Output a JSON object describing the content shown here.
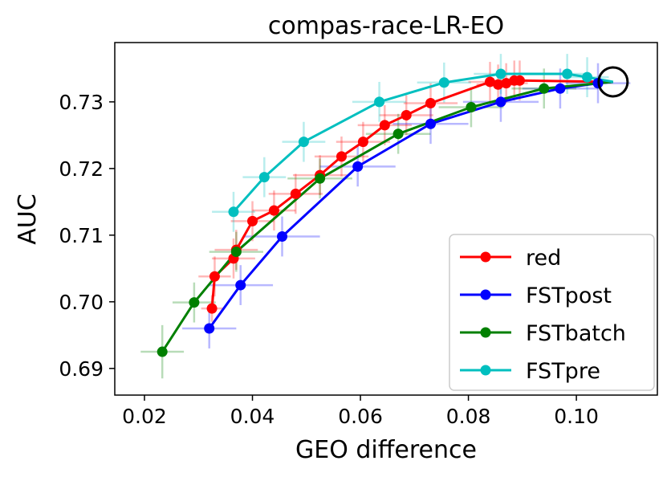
{
  "chart_data": {
    "type": "line",
    "title": "compas-race-LR-EO",
    "xlabel": "GEO difference",
    "ylabel": "AUC",
    "xlim": [
      0.0145,
      0.115
    ],
    "ylim": [
      0.686,
      0.7389
    ],
    "xticks": [
      0.02,
      0.04,
      0.06,
      0.08,
      0.1
    ],
    "xtick_labels": [
      "0.02",
      "0.04",
      "0.06",
      "0.08",
      "0.10"
    ],
    "yticks": [
      0.69,
      0.7,
      0.71,
      0.72,
      0.73
    ],
    "ytick_labels": [
      "0.69",
      "0.70",
      "0.71",
      "0.72",
      "0.73"
    ],
    "legend_position": "lower-right",
    "reference_point": {
      "x": 0.1068,
      "y": 0.733,
      "marker": "open-circle"
    },
    "series": [
      {
        "name": "red",
        "color": "#ff0000",
        "x": [
          0.0325,
          0.033,
          0.0365,
          0.037,
          0.04,
          0.044,
          0.048,
          0.0525,
          0.0565,
          0.0605,
          0.0645,
          0.0685,
          0.073,
          0.084,
          0.0855,
          0.087,
          0.0885,
          0.0895,
          0.1068
        ],
        "y": [
          0.699,
          0.7038,
          0.7065,
          0.7078,
          0.7121,
          0.7137,
          0.7162,
          0.719,
          0.7218,
          0.724,
          0.7265,
          0.728,
          0.7298,
          0.733,
          0.7326,
          0.7328,
          0.7332,
          0.7332,
          0.733
        ],
        "xerr": [
          0.002,
          0.003,
          0.004,
          0.004,
          0.004,
          0.004,
          0.005,
          0.005,
          0.005,
          0.005,
          0.005,
          0.005,
          0.005,
          0.004,
          0.004,
          0.004,
          0.003,
          0.003,
          0.0
        ],
        "yerr": [
          0.002,
          0.003,
          0.003,
          0.003,
          0.003,
          0.003,
          0.003,
          0.003,
          0.003,
          0.003,
          0.003,
          0.003,
          0.003,
          0.003,
          0.003,
          0.003,
          0.003,
          0.003,
          0.0
        ]
      },
      {
        "name": "FSTpost",
        "color": "#0000ff",
        "x": [
          0.032,
          0.0378,
          0.0455,
          0.0595,
          0.073,
          0.086,
          0.097,
          0.104,
          0.1068
        ],
        "y": [
          0.696,
          0.7025,
          0.7098,
          0.7203,
          0.7267,
          0.73,
          0.732,
          0.7328,
          0.733
        ],
        "xerr": [
          0.005,
          0.006,
          0.007,
          0.007,
          0.007,
          0.007,
          0.007,
          0.006,
          0.0
        ],
        "yerr": [
          0.003,
          0.003,
          0.003,
          0.003,
          0.003,
          0.003,
          0.003,
          0.003,
          0.0
        ]
      },
      {
        "name": "FSTbatch",
        "color": "#008000",
        "x": [
          0.0233,
          0.0292,
          0.037,
          0.0525,
          0.067,
          0.0805,
          0.094,
          0.1068
        ],
        "y": [
          0.6925,
          0.6999,
          0.7075,
          0.7185,
          0.7252,
          0.7292,
          0.732,
          0.733
        ],
        "xerr": [
          0.004,
          0.004,
          0.005,
          0.006,
          0.006,
          0.006,
          0.006,
          0.0
        ],
        "yerr": [
          0.004,
          0.003,
          0.003,
          0.003,
          0.003,
          0.003,
          0.003,
          0.0
        ]
      },
      {
        "name": "FSTpre",
        "color": "#00bfbf",
        "x": [
          0.0365,
          0.0422,
          0.0495,
          0.0635,
          0.0755,
          0.086,
          0.0983,
          0.102,
          0.1068
        ],
        "y": [
          0.7135,
          0.7187,
          0.724,
          0.73,
          0.7329,
          0.7342,
          0.7342,
          0.7337,
          0.733
        ],
        "xerr": [
          0.004,
          0.004,
          0.004,
          0.005,
          0.005,
          0.005,
          0.004,
          0.004,
          0.0
        ],
        "yerr": [
          0.003,
          0.003,
          0.003,
          0.003,
          0.003,
          0.003,
          0.003,
          0.003,
          0.0
        ]
      }
    ]
  }
}
